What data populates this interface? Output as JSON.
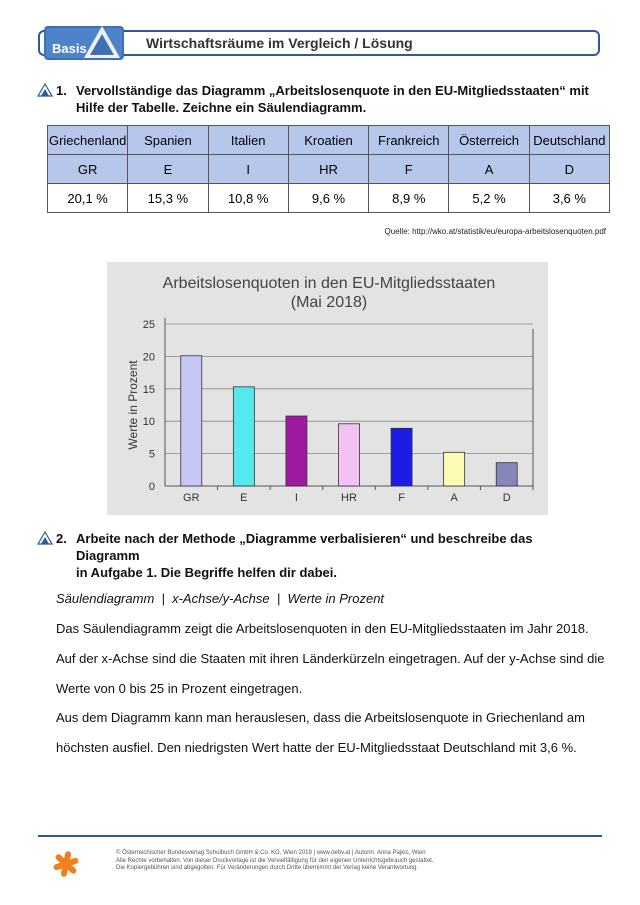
{
  "header": {
    "logo_text": "Basis",
    "title": "Wirtschaftsräume im Vergleich / Lösung"
  },
  "task1": {
    "number": "1.",
    "line1": "Vervollständige das Diagramm „Arbeitslosenquote in den EU-Mitgliedsstaaten“ mit",
    "line2": "Hilfe der Tabelle. Zeichne ein Säulendiagramm."
  },
  "table": {
    "countries": [
      "Griechenland",
      "Spanien",
      "Italien",
      "Kroatien",
      "Frankreich",
      "Österreich",
      "Deutschland"
    ],
    "codes": [
      "GR",
      "E",
      "I",
      "HR",
      "F",
      "A",
      "D"
    ],
    "values": [
      "20,1 %",
      "15,3 %",
      "10,8 %",
      "9,6 %",
      "8,9 %",
      "5,2 %",
      "3,6 %"
    ]
  },
  "source": "Quelle: http://wko.at/statistik/eu/europa-arbeitslosenquoten.pdf",
  "chart_data": {
    "type": "bar",
    "title": "Arbeitslosenquoten in den EU-Mitgliedsstaaten",
    "subtitle": "(Mai 2018)",
    "ylabel": "Werte in Prozent",
    "categories": [
      "GR",
      "E",
      "I",
      "HR",
      "F",
      "A",
      "D"
    ],
    "values": [
      20.1,
      15.3,
      10.8,
      9.6,
      8.9,
      5.2,
      3.6
    ],
    "colors": [
      "#c5c8f7",
      "#55e8ec",
      "#9e1a9e",
      "#f3c2f3",
      "#1c1ce6",
      "#fbfbb4",
      "#8686ba"
    ],
    "ylim": [
      0,
      25
    ],
    "yticks": [
      "0",
      "5",
      "10",
      "15",
      "20",
      "25"
    ],
    "grid": true
  },
  "task2": {
    "number": "2.",
    "line1": "Arbeite nach der Methode „Diagramme verbalisieren“ und beschreibe das Diagramm",
    "line2": "in Aufgabe 1. Die Begriffe helfen dir dabei."
  },
  "terms": "Säulendiagramm  |  x-Achse/y-Achse  |  Werte in Prozent",
  "answer": {
    "p1": "Das Säulendiagramm zeigt die Arbeitslosenquoten in den EU-Mitgliedsstaaten im Jahr 2018.",
    "p2": "Auf der x-Achse sind die Staaten mit ihren Länderkürzeln eingetragen. Auf der y-Achse sind die",
    "p3": "Werte von 0 bis 25 in Prozent eingetragen.",
    "p4": "Aus dem Diagramm kann man herauslesen, dass die Arbeitslosenquote in Griechenland am",
    "p5": "höchsten ausfiel. Den niedrigsten Wert hatte der EU-Mitgliedsstaat Deutschland mit 3,6 %."
  },
  "footer": {
    "l1": "© Österreichischer Bundesverlag Schulbuch GmbH & Co. KG, Wien 2019 | www.oebv.at | Autorin: Anna Pajkic, Wien",
    "l2": "Alle Rechte vorbehalten. Von dieser Druckvorlage ist die Vervielfältigung für den eigenen Unterrichtsgebrauch gestattet.",
    "l3": "Die Kopiergebühren sind abgegolten. Für Veränderungen durch Dritte übernimmt der Verlag keine Verantwortung."
  }
}
